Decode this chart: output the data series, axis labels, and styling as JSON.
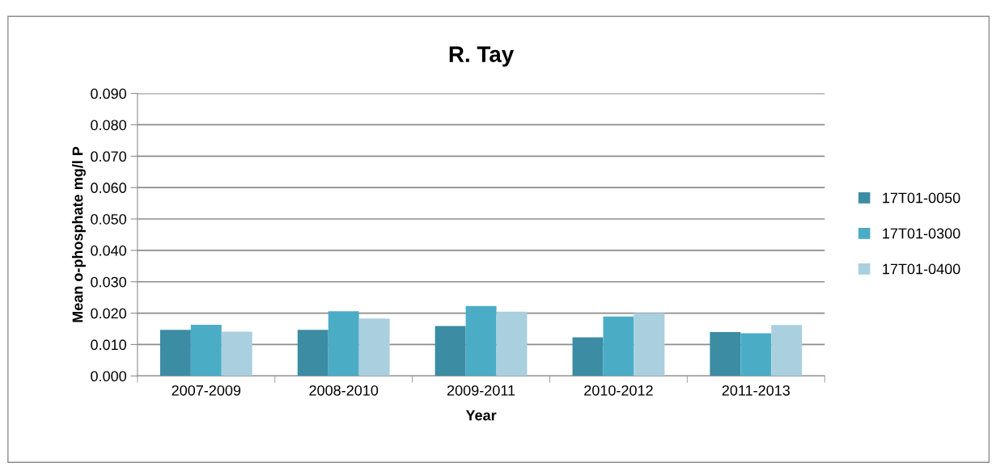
{
  "chart_data": {
    "type": "bar",
    "title": "R. Tay",
    "xlabel": "Year",
    "ylabel": "Mean o-phosphate mg/l P",
    "categories": [
      "2007-2009",
      "2008-2010",
      "2009-2011",
      "2010-2012",
      "2011-2013"
    ],
    "series": [
      {
        "name": "17T01-0050",
        "color": "#3c8ca4",
        "values": [
          0.0147,
          0.0147,
          0.0159,
          0.0123,
          0.014
        ]
      },
      {
        "name": "17T01-0300",
        "color": "#4bacc6",
        "values": [
          0.0163,
          0.0206,
          0.0223,
          0.0189,
          0.0136
        ]
      },
      {
        "name": "17T01-0400",
        "color": "#aacfdf",
        "values": [
          0.0141,
          0.0183,
          0.0205,
          0.02,
          0.0162
        ]
      }
    ],
    "ylim": [
      0,
      0.09
    ],
    "yticks": [
      {
        "value": 0,
        "label": "0.000"
      },
      {
        "value": 0.01,
        "label": "0.010"
      },
      {
        "value": 0.02,
        "label": "0.020"
      },
      {
        "value": 0.03,
        "label": "0.030"
      },
      {
        "value": 0.04,
        "label": "0.040"
      },
      {
        "value": 0.05,
        "label": "0.050"
      },
      {
        "value": 0.06,
        "label": "0.060"
      },
      {
        "value": 0.07,
        "label": "0.070"
      },
      {
        "value": 0.08,
        "label": "0.080"
      },
      {
        "value": 0.09,
        "label": "0.090"
      }
    ],
    "grid": "y",
    "legend": "right"
  }
}
